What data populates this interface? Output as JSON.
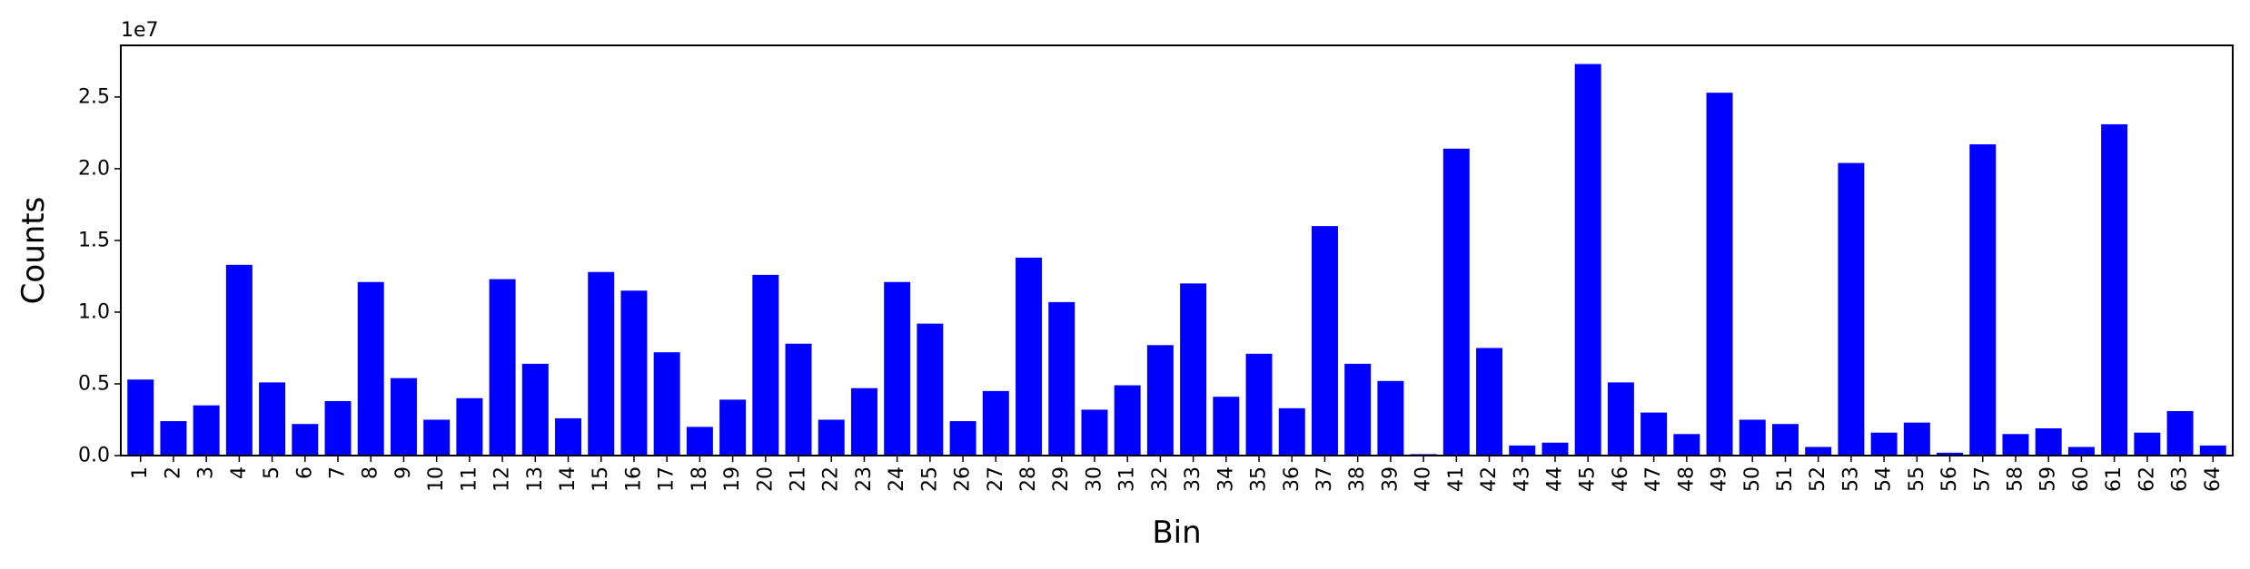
{
  "chart_data": {
    "type": "bar",
    "xlabel": "Bin",
    "ylabel": "Counts",
    "offset_label": "1e7",
    "bar_color": "#0000ff",
    "ylim": [
      0,
      2.86
    ],
    "yticks": [
      "0.0",
      "0.5",
      "1.0",
      "1.5",
      "2.0",
      "2.5"
    ],
    "categories": [
      "1",
      "2",
      "3",
      "4",
      "5",
      "6",
      "7",
      "8",
      "9",
      "10",
      "11",
      "12",
      "13",
      "14",
      "15",
      "16",
      "17",
      "18",
      "19",
      "20",
      "21",
      "22",
      "23",
      "24",
      "25",
      "26",
      "27",
      "28",
      "29",
      "30",
      "31",
      "32",
      "33",
      "34",
      "35",
      "36",
      "37",
      "38",
      "39",
      "40",
      "41",
      "42",
      "43",
      "44",
      "45",
      "46",
      "47",
      "48",
      "49",
      "50",
      "51",
      "52",
      "53",
      "54",
      "55",
      "56",
      "57",
      "58",
      "59",
      "60",
      "61",
      "62",
      "63",
      "64"
    ],
    "values": [
      0.53,
      0.24,
      0.35,
      1.33,
      0.51,
      0.22,
      0.38,
      1.21,
      0.54,
      0.25,
      0.4,
      1.23,
      0.64,
      0.26,
      1.28,
      1.15,
      0.72,
      0.2,
      0.39,
      1.26,
      0.78,
      0.25,
      0.47,
      1.21,
      0.92,
      0.24,
      0.45,
      1.38,
      1.07,
      0.32,
      0.49,
      0.77,
      1.2,
      0.41,
      0.71,
      0.33,
      1.6,
      0.64,
      0.52,
      0.01,
      2.14,
      0.75,
      0.07,
      0.09,
      2.73,
      0.51,
      0.3,
      0.15,
      2.53,
      0.25,
      0.22,
      0.06,
      2.04,
      0.16,
      0.23,
      0.02,
      2.17,
      0.15,
      0.19,
      0.06,
      2.31,
      0.16,
      0.31,
      0.07
    ]
  }
}
